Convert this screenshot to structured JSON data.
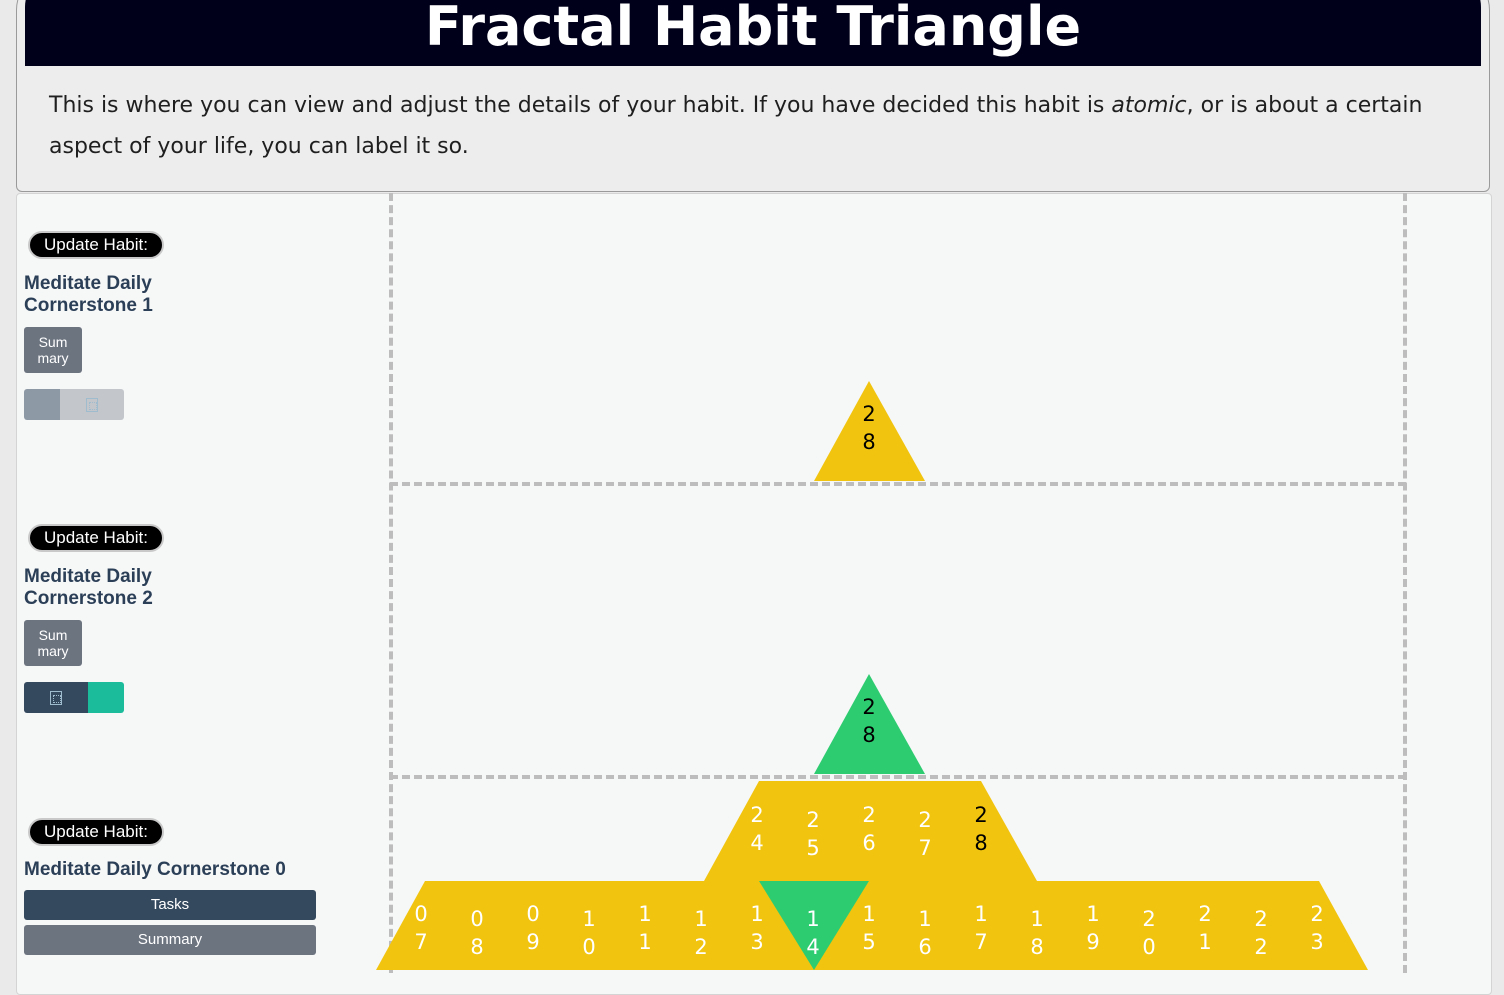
{
  "header": {
    "title": "Fractal Habit Triangle",
    "description_parts": [
      "This is where you can view and adjust the details of your habit. If you have decided this habit is ",
      "atomic",
      ", or is about a certain aspect of your life, you can label it so."
    ]
  },
  "habits": [
    {
      "update_label": "Update Habit:",
      "name": "Meditate Daily Cornerstone 1",
      "summary_label": "Sum mary",
      "toggle_icon": "grid-icon"
    },
    {
      "update_label": "Update Habit:",
      "name": "Meditate Daily Cornerstone 2",
      "summary_label": "Sum mary",
      "toggle_icon": "grid-icon"
    },
    {
      "update_label": "Update Habit:",
      "name": "Meditate Daily Cornerstone 0",
      "tasks_label": "Tasks",
      "summary_label": "Summary"
    }
  ],
  "colors": {
    "yellow": "#f1c40f",
    "green": "#2ecc71",
    "navy": "#34495e",
    "teal": "#1abc9c",
    "gray": "#6c7480"
  },
  "triangles": {
    "top_single": {
      "label": "28",
      "color": "yellow"
    },
    "middle_single": {
      "label": "28",
      "color": "green"
    },
    "upper_row": {
      "labels": [
        "24",
        "25",
        "26",
        "27",
        "28"
      ],
      "highlight_dark_text": "28"
    },
    "lower_row": {
      "labels": [
        "07",
        "08",
        "09",
        "10",
        "11",
        "12",
        "13",
        "14",
        "15",
        "16",
        "17",
        "18",
        "19",
        "20",
        "21",
        "22",
        "23"
      ],
      "green_index": 7
    }
  }
}
